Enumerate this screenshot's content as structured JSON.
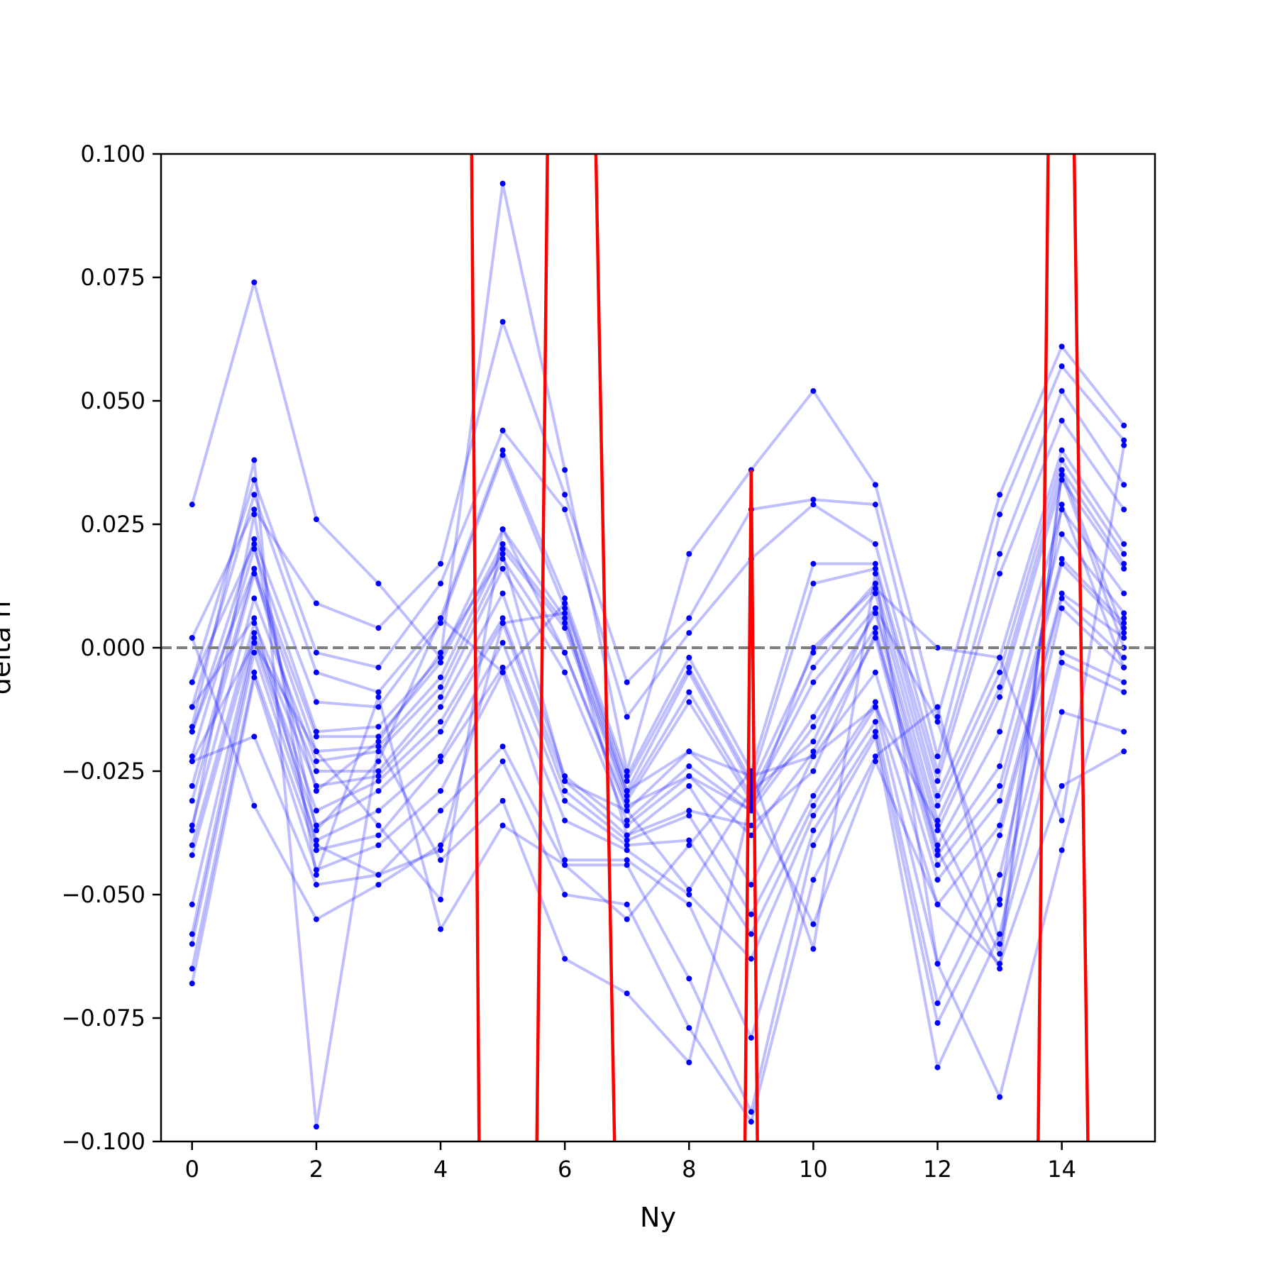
{
  "chart_data": {
    "type": "line",
    "title": "",
    "xlabel": "Ny",
    "ylabel": "delta n",
    "xlim": [
      -0.5,
      15.5
    ],
    "ylim": [
      -0.1,
      0.1
    ],
    "xticks": [
      0,
      2,
      4,
      6,
      8,
      10,
      12,
      14
    ],
    "xtick_labels": [
      "0",
      "2",
      "4",
      "6",
      "8",
      "10",
      "12",
      "14"
    ],
    "yticks": [
      -0.1,
      -0.075,
      -0.05,
      -0.025,
      0.0,
      0.025,
      0.05,
      0.075,
      0.1
    ],
    "ytick_labels": [
      "−0.100",
      "−0.075",
      "−0.050",
      "−0.025",
      "0.000",
      "0.025",
      "0.050",
      "0.075",
      "0.100"
    ],
    "grid": false,
    "legend": "none",
    "reference_line": {
      "y": 0.0,
      "style": "dashed",
      "color": "#808080"
    },
    "colors": {
      "trial_series": "#0000ff",
      "highlight_series": "#ff0000"
    },
    "x": [
      0,
      1,
      2,
      3,
      4,
      5,
      6,
      7,
      8,
      9,
      10,
      11,
      12,
      13,
      14,
      15
    ],
    "series": [
      {
        "values": [
          0.029,
          0.074,
          0.026,
          0.013,
          -0.002,
          0.094,
          0.036,
          -0.025,
          0.019,
          0.036,
          0.052,
          0.033,
          -0.014,
          0.031,
          0.061,
          0.045
        ]
      },
      {
        "values": [
          0.002,
          0.028,
          0.009,
          0.004,
          0.017,
          0.066,
          0.031,
          -0.007,
          0.006,
          0.028,
          0.03,
          0.029,
          -0.022,
          0.027,
          0.057,
          0.042
        ]
      },
      {
        "values": [
          -0.007,
          0.034,
          -0.001,
          -0.004,
          0.013,
          0.044,
          0.028,
          -0.014,
          0.003,
          0.018,
          0.029,
          0.021,
          -0.025,
          0.019,
          0.052,
          0.033
        ]
      },
      {
        "values": [
          -0.012,
          0.031,
          -0.005,
          -0.009,
          0.006,
          0.04,
          0.01,
          -0.026,
          -0.002,
          -0.025,
          0.017,
          0.017,
          -0.027,
          0.015,
          0.046,
          0.028
        ]
      },
      {
        "values": [
          -0.017,
          0.022,
          -0.011,
          -0.012,
          0.005,
          0.039,
          0.008,
          -0.027,
          -0.004,
          -0.027,
          0.013,
          0.016,
          -0.03,
          -0.002,
          0.04,
          0.021
        ]
      },
      {
        "values": [
          -0.022,
          0.02,
          -0.017,
          -0.016,
          -0.002,
          0.024,
          0.006,
          -0.029,
          -0.005,
          -0.028,
          -0.001,
          0.013,
          -0.032,
          -0.005,
          0.038,
          0.019
        ]
      },
      {
        "values": [
          -0.028,
          0.016,
          -0.018,
          -0.018,
          -0.003,
          0.021,
          0.005,
          -0.03,
          -0.009,
          -0.03,
          -0.004,
          0.011,
          -0.035,
          -0.008,
          0.036,
          0.017
        ]
      },
      {
        "values": [
          -0.031,
          0.015,
          -0.021,
          -0.02,
          -0.006,
          0.02,
          0.004,
          -0.031,
          -0.011,
          -0.031,
          -0.007,
          0.008,
          -0.037,
          -0.01,
          0.034,
          0.016
        ]
      },
      {
        "values": [
          -0.036,
          0.01,
          -0.023,
          -0.021,
          -0.008,
          0.018,
          -0.001,
          -0.033,
          -0.021,
          -0.032,
          -0.014,
          0.007,
          -0.04,
          -0.017,
          0.028,
          0.011
        ]
      },
      {
        "values": [
          -0.04,
          0.005,
          -0.025,
          -0.025,
          -0.01,
          0.016,
          -0.005,
          -0.035,
          -0.024,
          -0.033,
          -0.016,
          0.004,
          -0.042,
          -0.024,
          0.023,
          0.007
        ]
      },
      {
        "values": [
          -0.042,
          0.003,
          -0.028,
          -0.026,
          -0.012,
          0.011,
          -0.026,
          -0.036,
          -0.026,
          -0.038,
          -0.021,
          0.002,
          -0.044,
          -0.028,
          0.018,
          0.005
        ]
      },
      {
        "values": [
          -0.052,
          0.002,
          -0.033,
          -0.027,
          -0.015,
          0.006,
          -0.027,
          -0.038,
          -0.028,
          -0.048,
          -0.022,
          -0.005,
          -0.047,
          -0.031,
          0.017,
          0.004
        ]
      },
      {
        "values": [
          -0.058,
          0.001,
          -0.036,
          -0.029,
          -0.017,
          0.005,
          -0.029,
          -0.039,
          -0.034,
          -0.054,
          -0.03,
          -0.011,
          -0.052,
          -0.036,
          0.011,
          0.002
        ]
      },
      {
        "values": [
          -0.06,
          -0.001,
          -0.039,
          -0.033,
          -0.022,
          0.001,
          -0.031,
          -0.04,
          -0.039,
          -0.058,
          -0.032,
          -0.012,
          -0.064,
          -0.038,
          0.01,
          -0.002
        ]
      },
      {
        "values": [
          -0.065,
          -0.005,
          -0.041,
          -0.038,
          -0.023,
          -0.004,
          -0.035,
          -0.041,
          -0.05,
          -0.063,
          -0.034,
          -0.015,
          -0.072,
          -0.046,
          0.008,
          -0.004
        ]
      },
      {
        "values": [
          -0.068,
          -0.006,
          -0.045,
          -0.04,
          -0.029,
          -0.005,
          -0.043,
          -0.043,
          -0.052,
          -0.079,
          -0.037,
          -0.017,
          -0.076,
          -0.051,
          -0.001,
          -0.007
        ]
      },
      {
        "values": [
          -0.023,
          -0.018,
          -0.048,
          -0.046,
          -0.033,
          -0.02,
          -0.044,
          -0.044,
          -0.067,
          -0.094,
          -0.04,
          -0.018,
          -0.085,
          -0.058,
          -0.003,
          -0.009
        ]
      },
      {
        "values": [
          0.002,
          -0.032,
          -0.055,
          -0.048,
          -0.04,
          -0.023,
          -0.05,
          -0.052,
          -0.077,
          -0.096,
          -0.047,
          -0.022,
          -0.012,
          -0.06,
          -0.013,
          -0.017
        ]
      },
      {
        "values": [
          -0.016,
          0.038,
          -0.097,
          -0.02,
          -0.043,
          -0.031,
          -0.063,
          -0.07,
          -0.084,
          -0.031,
          -0.056,
          -0.023,
          -0.052,
          -0.064,
          -0.028,
          -0.021
        ]
      },
      {
        "values": [
          -0.037,
          0.027,
          -0.046,
          -0.01,
          -0.057,
          -0.036,
          -0.044,
          -0.055,
          -0.04,
          -0.025,
          -0.061,
          0.015,
          -0.064,
          -0.091,
          -0.041,
          0.006
        ]
      },
      {
        "values": [
          -0.023,
          0.001,
          -0.021,
          -0.036,
          -0.051,
          0.024,
          -0.001,
          -0.032,
          -0.026,
          -0.033,
          0.0,
          0.012,
          -0.0,
          -0.002,
          -0.035,
          0.041
        ]
      },
      {
        "values": [
          -0.007,
          0.021,
          -0.037,
          -0.023,
          0.006,
          -0.005,
          0.009,
          -0.029,
          -0.021,
          -0.026,
          -0.022,
          -0.012,
          -0.036,
          -0.062,
          0.035,
          0.0
        ]
      },
      {
        "values": [
          -0.012,
          0.006,
          -0.04,
          -0.046,
          -0.041,
          0.005,
          0.007,
          -0.038,
          -0.033,
          -0.036,
          -0.025,
          0.003,
          -0.041,
          -0.065,
          0.036,
          0.003
        ]
      },
      {
        "values": [
          -0.017,
          0.016,
          -0.029,
          -0.019,
          -0.001,
          0.019,
          -0.027,
          -0.033,
          -0.049,
          -0.029,
          -0.019,
          0.008,
          -0.015,
          -0.052,
          0.029,
          -0.004
        ]
      }
    ],
    "highlight_series": [
      {
        "x": [
          4.5,
          4.62
        ],
        "values": [
          0.1,
          -0.1
        ]
      },
      {
        "x": [
          5.55,
          5.72
        ],
        "values": [
          -0.1,
          0.1
        ]
      },
      {
        "x": [
          6.5,
          6.8
        ],
        "values": [
          0.1,
          -0.1
        ]
      },
      {
        "x": [
          8.9,
          9.0,
          9.1
        ],
        "values": [
          -0.1,
          0.036,
          -0.1
        ]
      },
      {
        "x": [
          13.62,
          13.78
        ],
        "values": [
          -0.1,
          0.1
        ]
      },
      {
        "x": [
          14.2,
          14.42
        ],
        "values": [
          0.1,
          -0.1
        ]
      }
    ]
  }
}
